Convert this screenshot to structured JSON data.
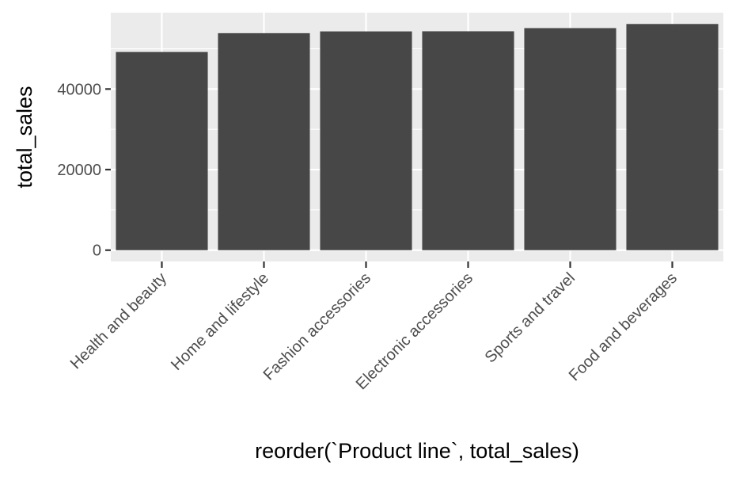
{
  "chart_data": {
    "type": "bar",
    "title": "",
    "xlabel": "reorder(`Product line`, total_sales)",
    "ylabel": "total_sales",
    "categories": [
      "Health and beauty",
      "Home and lifestyle",
      "Fashion accessories",
      "Electronic accessories",
      "Sports and travel",
      "Food and beverages"
    ],
    "values": [
      49193.74,
      53861.91,
      54305.9,
      54337.53,
      55122.83,
      56144.84
    ],
    "ylim": [
      -2807.24,
      58952.08
    ],
    "yticks": [
      0,
      20000,
      40000
    ],
    "ytick_labels": [
      "0",
      "20000",
      "40000"
    ],
    "grid": true,
    "legend": "none",
    "colors": {
      "bar": "#474747",
      "panel_background": "#ebebeb",
      "grid_major": "#ffffff",
      "tick": "#333333",
      "tick_label": "#4d4d4d",
      "axis_title": "#000000"
    }
  }
}
